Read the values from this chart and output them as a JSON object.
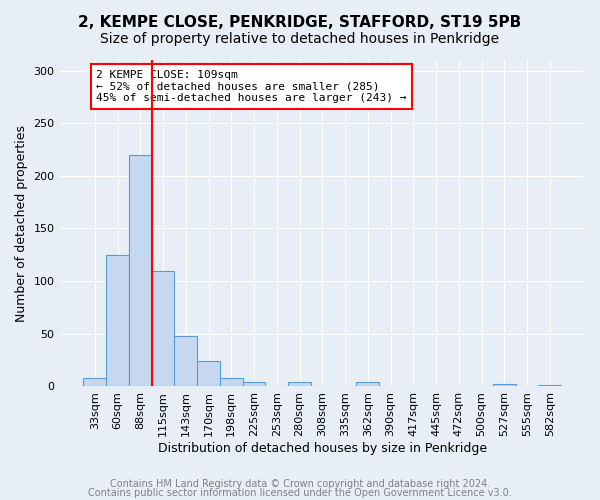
{
  "title": "2, KEMPE CLOSE, PENKRIDGE, STAFFORD, ST19 5PB",
  "subtitle": "Size of property relative to detached houses in Penkridge",
  "xlabel": "Distribution of detached houses by size in Penkridge",
  "ylabel": "Number of detached properties",
  "bar_heights": [
    8,
    125,
    220,
    110,
    48,
    24,
    8,
    4,
    0,
    4,
    0,
    0,
    4,
    0,
    0,
    0,
    0,
    0,
    2,
    0,
    1
  ],
  "bin_labels": [
    "33sqm",
    "60sqm",
    "88sqm",
    "115sqm",
    "143sqm",
    "170sqm",
    "198sqm",
    "225sqm",
    "253sqm",
    "280sqm",
    "308sqm",
    "335sqm",
    "362sqm",
    "390sqm",
    "417sqm",
    "445sqm",
    "472sqm",
    "500sqm",
    "527sqm",
    "555sqm",
    "582sqm"
  ],
  "bar_color": "#c5d8f0",
  "bar_edge_color": "#5b9bd5",
  "vline_x_index": 2.5,
  "vline_color": "red",
  "ylim": [
    0,
    310
  ],
  "yticks": [
    0,
    50,
    100,
    150,
    200,
    250,
    300
  ],
  "annotation_line1": "2 KEMPE CLOSE: 109sqm",
  "annotation_line2": "← 52% of detached houses are smaller (285)",
  "annotation_line3": "45% of semi-detached houses are larger (243) →",
  "annotation_box_color": "red",
  "footer1": "Contains HM Land Registry data © Crown copyright and database right 2024.",
  "footer2": "Contains public sector information licensed under the Open Government Licence v3.0.",
  "background_color": "#e8eef5",
  "plot_bg_color": "#e8eef5",
  "grid_color": "white",
  "title_fontsize": 11,
  "subtitle_fontsize": 10,
  "axis_label_fontsize": 9,
  "tick_fontsize": 8,
  "footer_fontsize": 7
}
